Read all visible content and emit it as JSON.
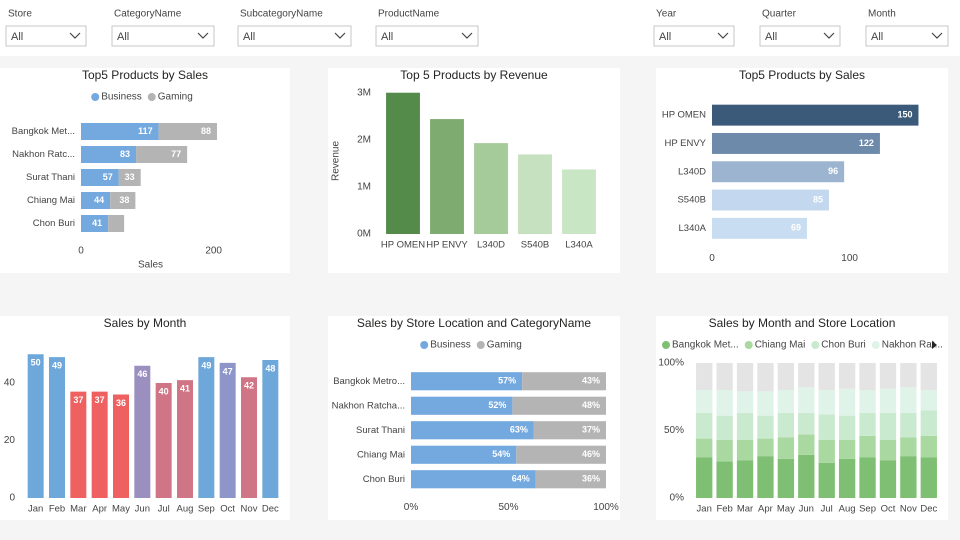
{
  "filters": [
    {
      "label": "Store",
      "value": "All"
    },
    {
      "label": "CategoryName",
      "value": "All"
    },
    {
      "label": "SubcategoryName",
      "value": "All"
    },
    {
      "label": "ProductName",
      "value": "All"
    },
    {
      "label": "Year",
      "value": "All"
    },
    {
      "label": "Quarter",
      "value": "All"
    },
    {
      "label": "Month",
      "value": "All"
    }
  ],
  "chart_data": [
    {
      "type": "bar",
      "orientation": "horizontal",
      "stacked": true,
      "title": "Top5 Products by Sales",
      "categories": [
        "Bangkok Met...",
        "Nakhon Ratc...",
        "Surat Thani",
        "Chiang Mai",
        "Chon Buri"
      ],
      "series": [
        {
          "name": "Business",
          "color": "#73a9df",
          "values": [
            117,
            83,
            57,
            44,
            41
          ]
        },
        {
          "name": "Gaming",
          "color": "#b4b4b4",
          "values": [
            88,
            77,
            33,
            38,
            24
          ]
        }
      ],
      "xlim": [
        0,
        300
      ],
      "xticks": [
        0,
        200
      ],
      "xlabel": "Sales",
      "legend": "top",
      "data_labels": true
    },
    {
      "type": "bar",
      "title": "Top 5 Products by Revenue",
      "categories": [
        "HP OMEN",
        "HP ENVY",
        "L340D",
        "S540B",
        "L340A"
      ],
      "values": [
        3000000,
        2440000,
        1930000,
        1690000,
        1370000
      ],
      "colors": [
        "#548b4a",
        "#7dab70",
        "#a6cb9b",
        "#c6e1bf",
        "#c9e6c4"
      ],
      "ylim": [
        0,
        3100000
      ],
      "yticks": [
        {
          "value": 0,
          "label": "0M"
        },
        {
          "value": 1000000,
          "label": "1M"
        },
        {
          "value": 2000000,
          "label": "2M"
        },
        {
          "value": 3000000,
          "label": "3M"
        }
      ],
      "ylabel": "Revenue"
    },
    {
      "type": "bar",
      "orientation": "horizontal",
      "title": "Top5 Products by Sales",
      "categories": [
        "HP OMEN",
        "HP ENVY",
        "L340D",
        "S540B",
        "L340A"
      ],
      "values": [
        150,
        122,
        96,
        85,
        69
      ],
      "colors": [
        "#3b5a7a",
        "#6d8aab",
        "#9cb4d0",
        "#c3d8ee",
        "#c9ddf2"
      ],
      "xlim": [
        0,
        170
      ],
      "xticks": [
        0,
        100
      ],
      "data_labels": true
    },
    {
      "type": "bar",
      "title": "Sales by Month",
      "categories": [
        "Jan",
        "Feb",
        "Mar",
        "Apr",
        "May",
        "Jun",
        "Jul",
        "Aug",
        "Sep",
        "Oct",
        "Nov",
        "Dec"
      ],
      "values": [
        50,
        49,
        37,
        37,
        36,
        46,
        40,
        41,
        49,
        47,
        42,
        48
      ],
      "colors": [
        "#6ea7da",
        "#6ea7da",
        "#ee6160",
        "#ee6160",
        "#ee6160",
        "#9a8fbf",
        "#d07586",
        "#d07586",
        "#6ea7da",
        "#8d95c9",
        "#d07586",
        "#6ea7da"
      ],
      "ylim": [
        0,
        52
      ],
      "yticks": [
        0,
        20,
        40
      ],
      "data_labels": true
    },
    {
      "type": "bar",
      "orientation": "horizontal",
      "stacked": true,
      "title": "Sales by Store Location and CategoryName",
      "categories": [
        "Bangkok Metro...",
        "Nakhon Ratcha...",
        "Surat Thani",
        "Chiang Mai",
        "Chon Buri"
      ],
      "series": [
        {
          "name": "Business",
          "color": "#73a9df",
          "values": [
            57,
            52,
            63,
            54,
            64
          ],
          "value_labels": [
            "57%",
            "52%",
            "63%",
            "54%",
            "64%"
          ]
        },
        {
          "name": "Gaming",
          "color": "#b4b4b4",
          "values": [
            43,
            48,
            37,
            46,
            36
          ],
          "value_labels": [
            "43%",
            "48%",
            "37%",
            "46%",
            "36%"
          ]
        }
      ],
      "xlim": [
        0,
        100
      ],
      "xticks": [
        {
          "value": 0,
          "label": "0%"
        },
        {
          "value": 50,
          "label": "50%"
        },
        {
          "value": 100,
          "label": "100%"
        }
      ],
      "legend": "top",
      "data_labels": true
    },
    {
      "type": "bar",
      "stacked": true,
      "title": "Sales by Month and Store Location",
      "categories": [
        "Jan",
        "Feb",
        "Mar",
        "Apr",
        "May",
        "Jun",
        "Jul",
        "Aug",
        "Sep",
        "Oct",
        "Nov",
        "Dec"
      ],
      "series": [
        {
          "name": "Bangkok Met...",
          "color": "#7fbf73",
          "values": [
            30,
            27,
            28,
            31,
            29,
            32,
            26,
            29,
            30,
            28,
            31,
            30
          ]
        },
        {
          "name": "Chiang Mai",
          "color": "#a9d8a0",
          "values": [
            14,
            16,
            15,
            13,
            16,
            15,
            17,
            14,
            16,
            15,
            14,
            16
          ]
        },
        {
          "name": "Chon Buri",
          "color": "#c9eacf",
          "values": [
            19,
            18,
            20,
            17,
            18,
            16,
            19,
            18,
            17,
            20,
            18,
            19
          ]
        },
        {
          "name": "Nakhon Rat...",
          "color": "#e0f3e9",
          "values": [
            17,
            19,
            16,
            18,
            17,
            19,
            18,
            20,
            17,
            18,
            19,
            15
          ]
        },
        {
          "color": "#e4e4e4",
          "values": [
            20,
            20,
            21,
            21,
            20,
            18,
            20,
            19,
            20,
            19,
            18,
            20
          ]
        }
      ],
      "ylim": [
        0,
        100
      ],
      "yticks": [
        {
          "value": 0,
          "label": "0%"
        },
        {
          "value": 50,
          "label": "50%"
        },
        {
          "value": 100,
          "label": "100%"
        }
      ],
      "legend": "top-left"
    }
  ]
}
